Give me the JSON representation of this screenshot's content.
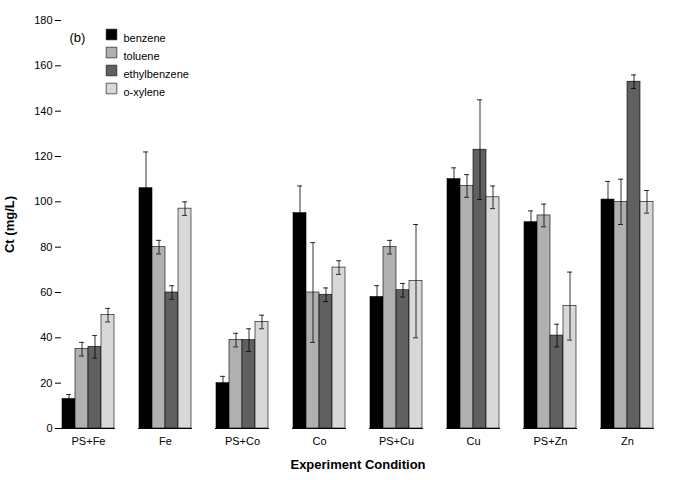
{
  "chart_data": {
    "type": "bar",
    "categories": [
      "PS+Fe",
      "Fe",
      "PS+Co",
      "Co",
      "PS+Cu",
      "Cu",
      "PS+Zn",
      "Zn"
    ],
    "series": [
      {
        "name": "benzene",
        "color": "#000000",
        "values": [
          13,
          106,
          20,
          95,
          58,
          110,
          91,
          101
        ],
        "errors": [
          2,
          16,
          3,
          12,
          5,
          5,
          5,
          8
        ]
      },
      {
        "name": "toluene",
        "color": "#b0b0b0",
        "values": [
          35,
          80,
          39,
          60,
          80,
          107,
          94,
          100
        ],
        "errors": [
          3,
          3,
          3,
          22,
          3,
          5,
          5,
          10
        ]
      },
      {
        "name": "ethylbenzene",
        "color": "#606060",
        "values": [
          36,
          60,
          39,
          59,
          61,
          123,
          41,
          153
        ],
        "errors": [
          5,
          3,
          5,
          3,
          3,
          22,
          5,
          3
        ]
      },
      {
        "name": "o-xylene",
        "color": "#d8d8d8",
        "values": [
          50,
          97,
          47,
          71,
          65,
          102,
          54,
          100
        ],
        "errors": [
          3,
          3,
          3,
          3,
          25,
          5,
          15,
          5
        ]
      }
    ],
    "xlabel": "Experiment Condition",
    "ylabel": "Ct (mg/L)",
    "ylim": [
      0,
      180
    ],
    "yticks": [
      0,
      20,
      40,
      60,
      80,
      100,
      120,
      140,
      160,
      180
    ],
    "annotation": "(b)",
    "legend": "upper left",
    "grid": false
  }
}
